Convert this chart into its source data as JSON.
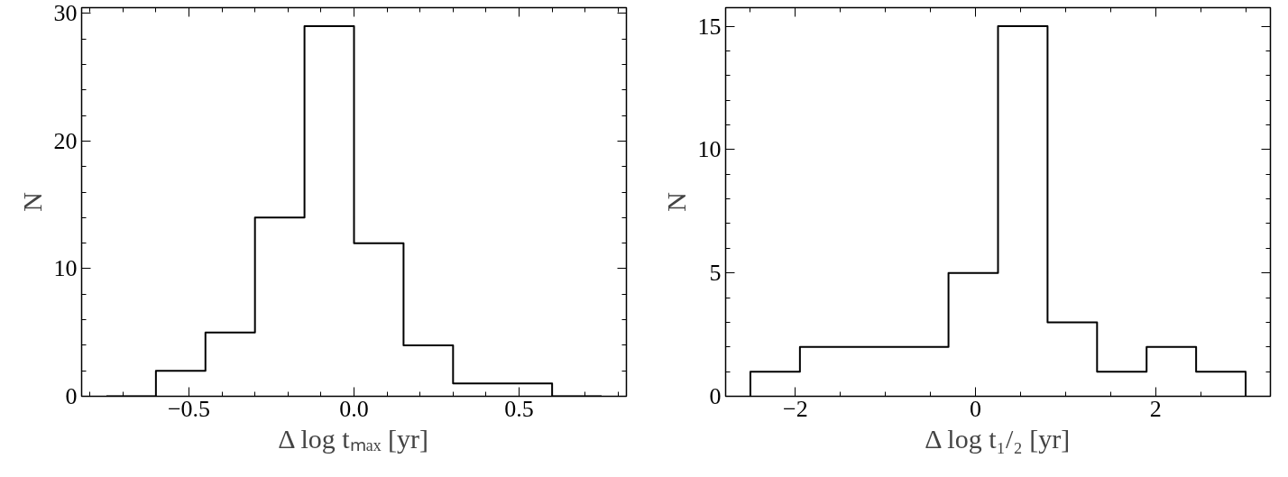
{
  "chart_data": [
    {
      "type": "histogram",
      "bins": [
        -0.75,
        -0.6,
        -0.45,
        -0.3,
        -0.15,
        0,
        0.15,
        0.3,
        0.45,
        0.6,
        0.75
      ],
      "values": [
        0,
        2,
        5,
        14,
        29,
        12,
        4,
        1,
        1,
        0
      ],
      "color": "#000000",
      "xlim": [
        -0.825,
        0.825
      ],
      "ylim": [
        0,
        30.45
      ],
      "xticks": [
        {
          "value": -0.5,
          "label": "−0.5"
        },
        {
          "value": 0,
          "label": "0.0"
        },
        0.5
      ],
      "yticks": [
        0,
        10,
        20,
        30
      ],
      "xlabel": "Δ log tₘₐₓ [yr]",
      "ylabel": "N"
    },
    {
      "type": "histogram",
      "bins": [
        -2.5,
        -1.95,
        -1.4,
        -0.85,
        -0.3,
        0.25,
        0.8,
        1.35,
        1.9,
        2.45,
        3.0
      ],
      "values": [
        1,
        2,
        2,
        2,
        5,
        15,
        3,
        1,
        2,
        1
      ],
      "color": "#000000",
      "xlim": [
        -2.775,
        3.275
      ],
      "ylim": [
        0,
        15.75
      ],
      "xticks": [
        {
          "value": -2,
          "label": "−2"
        },
        0,
        2
      ],
      "yticks": [
        0,
        5,
        10,
        15
      ],
      "xlabel": "Δ log t₁/₂ [yr]",
      "ylabel": "N"
    }
  ]
}
